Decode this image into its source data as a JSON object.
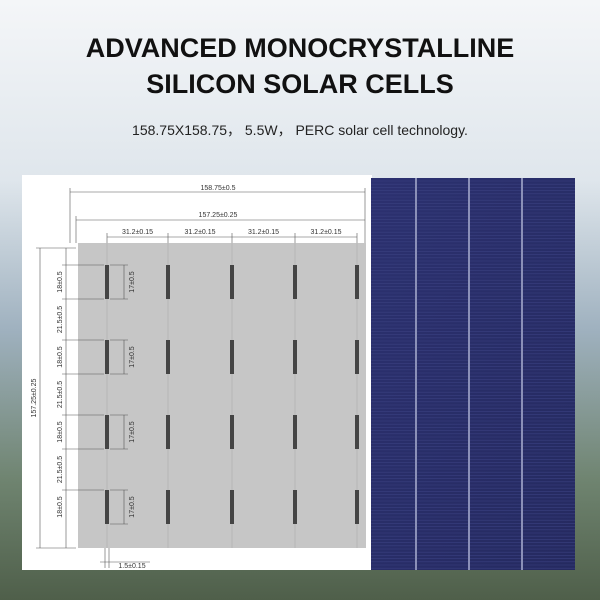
{
  "header": {
    "title_lines": [
      "ADVANCED MONOCRYSTALLINE",
      "SILICON SOLAR CELLS"
    ],
    "subtitle": "158.75X158.75， 5.5W， PERC solar cell technology."
  },
  "drawing": {
    "width_total": "158.75±0.5",
    "width_inner": "157.25±0.25",
    "pitch_labels": [
      "31.2±0.15",
      "31.2±0.15",
      "31.2±0.15",
      "31.2±0.15"
    ],
    "height_total": "157.25±0.25",
    "vertical_labels": [
      "18±0.5",
      "21.5±0.5",
      "18±0.5",
      "21.5±0.5",
      "18±0.5",
      "21.5±0.5",
      "18±0.5"
    ],
    "pad_labels": [
      "17±0.5",
      "17±0.5",
      "17±0.5",
      "17±0.5"
    ],
    "tab_label": "1.5±0.15"
  }
}
